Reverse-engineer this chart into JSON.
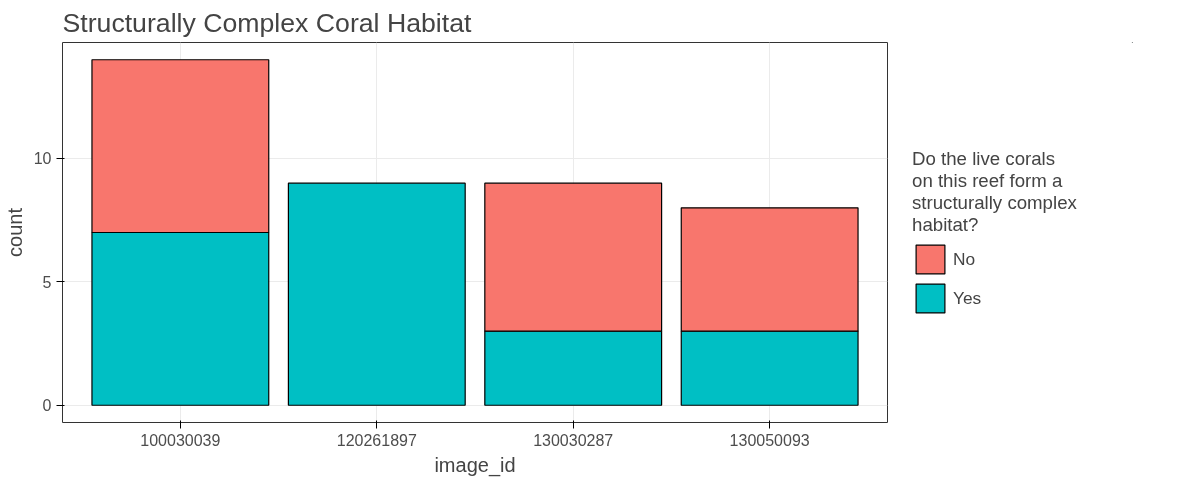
{
  "chart_data": {
    "type": "bar",
    "title": "Structurally Complex Coral Habitat",
    "xlabel": "image_id",
    "ylabel": "count",
    "legend_title": "Do the live corals on this reef form a structurally complex habitat?",
    "categories": [
      "100030039",
      "120261897",
      "130030287",
      "130050093"
    ],
    "stacked": true,
    "series": [
      {
        "name": "Yes",
        "color": "#00bfc4",
        "values": [
          7,
          9,
          3,
          3
        ]
      },
      {
        "name": "No",
        "color": "#f8766d",
        "values": [
          7,
          null,
          6,
          5
        ]
      }
    ],
    "ylim": [
      -0.7,
      14.7
    ],
    "yticks": [
      0,
      5,
      10
    ],
    "grid": true,
    "legend": "right"
  }
}
